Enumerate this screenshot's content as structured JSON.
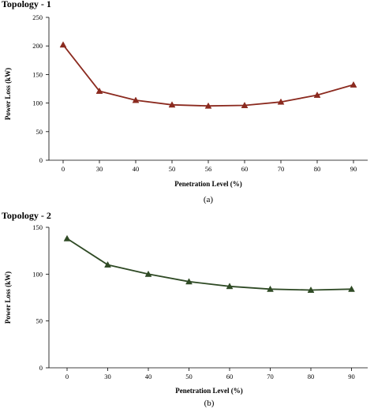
{
  "chart_data": [
    {
      "type": "line",
      "title": "Topology - 1",
      "xlabel": "Penetration Level (%)",
      "ylabel": "Power Loss (kW)",
      "caption": "(a)",
      "categories": [
        "0",
        "30",
        "40",
        "50",
        "56",
        "60",
        "70",
        "80",
        "90"
      ],
      "series": [
        {
          "values": [
            202,
            121,
            105,
            97,
            95,
            96,
            102,
            114,
            132
          ],
          "color": "#8b2a1f",
          "marker": "triangle"
        }
      ],
      "ylim": [
        0,
        250
      ],
      "yticks": [
        "0",
        "50",
        "100",
        "150",
        "200",
        "250"
      ],
      "grid": false
    },
    {
      "type": "line",
      "title": "Topology - 2",
      "xlabel": "Penetration Level (%)",
      "ylabel": "Power Loss (kW)",
      "caption": "(b)",
      "categories": [
        "0",
        "30",
        "40",
        "50",
        "60",
        "70",
        "80",
        "90"
      ],
      "series": [
        {
          "values": [
            138,
            110,
            100,
            92,
            87,
            84,
            83,
            84
          ],
          "color": "#2f4a25",
          "marker": "triangle"
        }
      ],
      "ylim": [
        0,
        150
      ],
      "yticks": [
        "0",
        "50",
        "100",
        "150"
      ],
      "grid": false
    }
  ]
}
